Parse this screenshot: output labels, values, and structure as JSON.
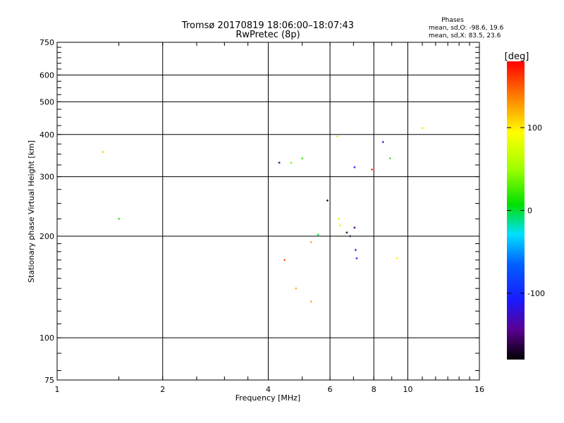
{
  "chart_data": {
    "type": "scatter",
    "title": "Tromsø 20170819 18:06:00–18:07:43",
    "subtitle": "RwPretec (8p)",
    "xlabel": "Frequency [MHz]",
    "ylabel": "Stationary phase Virtual Height [km]",
    "x_scale": "log",
    "y_scale": "log",
    "xlim": [
      1,
      16
    ],
    "ylim": [
      75,
      750
    ],
    "x_ticks": [
      1,
      2,
      4,
      6,
      8,
      10,
      16
    ],
    "x_tick_labels": [
      "1",
      "2",
      "4",
      "6",
      "8",
      "10",
      "16"
    ],
    "y_ticks": [
      75,
      100,
      200,
      300,
      400,
      500,
      600,
      750
    ],
    "y_tick_labels": [
      "75",
      "100",
      "200",
      "300",
      "400",
      "500",
      "600",
      "750"
    ],
    "grid": true,
    "phases_box": {
      "title": "Phases",
      "line1": "mean, sd,O: -98.6, 19.6",
      "line2": "mean, sd,X: 83.5, 23.6"
    },
    "colorbar": {
      "label": "[deg]",
      "range": [
        -180,
        180
      ],
      "ticks": [
        100,
        0,
        -100
      ],
      "tick_labels": [
        "100",
        "0",
        "-100"
      ]
    },
    "series": [
      {
        "points": [
          {
            "x": 1.35,
            "y": 355,
            "phase": 110
          },
          {
            "x": 1.5,
            "y": 225,
            "phase": 20
          },
          {
            "x": 11.0,
            "y": 418,
            "phase": 105
          },
          {
            "x": 4.3,
            "y": 330,
            "phase": -150
          },
          {
            "x": 4.65,
            "y": 330,
            "phase": 40
          },
          {
            "x": 5.0,
            "y": 340,
            "phase": 20
          },
          {
            "x": 5.9,
            "y": 255,
            "phase": -170
          },
          {
            "x": 6.3,
            "y": 395,
            "phase": 100
          },
          {
            "x": 6.35,
            "y": 225,
            "phase": 80
          },
          {
            "x": 6.4,
            "y": 215,
            "phase": 70
          },
          {
            "x": 6.7,
            "y": 205,
            "phase": -170
          },
          {
            "x": 6.85,
            "y": 200,
            "phase": -170
          },
          {
            "x": 7.05,
            "y": 212,
            "phase": -150
          },
          {
            "x": 7.05,
            "y": 320,
            "phase": -110
          },
          {
            "x": 7.9,
            "y": 315,
            "phase": 160
          },
          {
            "x": 8.5,
            "y": 380,
            "phase": -100
          },
          {
            "x": 8.9,
            "y": 340,
            "phase": 20
          },
          {
            "x": 5.55,
            "y": 202,
            "phase": 0
          },
          {
            "x": 5.3,
            "y": 192,
            "phase": 120
          },
          {
            "x": 4.45,
            "y": 170,
            "phase": 150
          },
          {
            "x": 4.8,
            "y": 140,
            "phase": 120
          },
          {
            "x": 5.3,
            "y": 128,
            "phase": 120
          },
          {
            "x": 9.3,
            "y": 172,
            "phase": 100
          },
          {
            "x": 7.1,
            "y": 182,
            "phase": -100
          },
          {
            "x": 7.15,
            "y": 172,
            "phase": -100
          }
        ]
      }
    ]
  }
}
